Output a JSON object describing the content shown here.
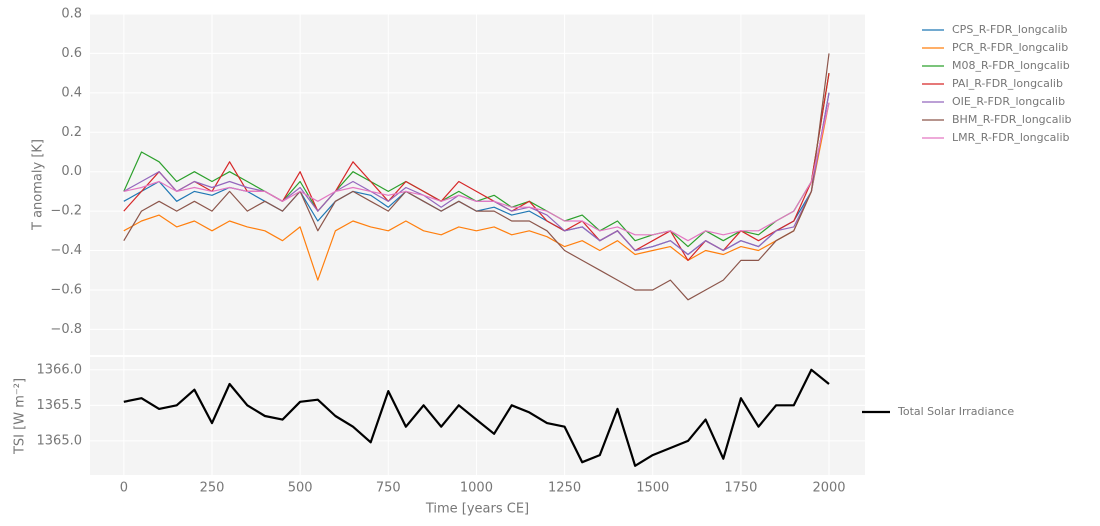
{
  "chart_data": [
    {
      "type": "line",
      "ylabel": "T anomaly [K]",
      "x": [
        0,
        50,
        100,
        150,
        200,
        250,
        300,
        350,
        400,
        450,
        500,
        550,
        600,
        650,
        700,
        750,
        800,
        850,
        900,
        950,
        1000,
        1050,
        1100,
        1150,
        1200,
        1250,
        1300,
        1350,
        1400,
        1450,
        1500,
        1550,
        1600,
        1650,
        1700,
        1750,
        1800,
        1850,
        1900,
        1950,
        2000
      ],
      "xlim": [
        -96,
        2102
      ],
      "ylim": [
        -0.93,
        0.8
      ],
      "yticks": [
        {
          "value": -0.8,
          "label": "−0.8"
        },
        {
          "value": -0.6,
          "label": "−0.6"
        },
        {
          "value": -0.4,
          "label": "−0.4"
        },
        {
          "value": -0.2,
          "label": "−0.2"
        },
        {
          "value": 0,
          "label": "0.0"
        },
        0.2,
        0.4,
        0.6,
        0.8
      ],
      "grid": true,
      "legend": "outside upper right",
      "series": [
        {
          "name": "CPS_R-FDR_longcalib",
          "color": "#1f77b4",
          "values": [
            -0.15,
            -0.1,
            -0.05,
            -0.15,
            -0.1,
            -0.12,
            -0.08,
            -0.1,
            -0.15,
            -0.2,
            -0.1,
            -0.25,
            -0.15,
            -0.1,
            -0.12,
            -0.18,
            -0.1,
            -0.15,
            -0.2,
            -0.15,
            -0.2,
            -0.18,
            -0.22,
            -0.2,
            -0.25,
            -0.3,
            -0.28,
            -0.35,
            -0.3,
            -0.4,
            -0.38,
            -0.35,
            -0.42,
            -0.35,
            -0.4,
            -0.35,
            -0.38,
            -0.3,
            -0.25,
            -0.1,
            0.4
          ]
        },
        {
          "name": "PCR_R-FDR_longcalib",
          "color": "#ff7f0e",
          "values": [
            -0.3,
            -0.25,
            -0.22,
            -0.28,
            -0.25,
            -0.3,
            -0.25,
            -0.28,
            -0.3,
            -0.35,
            -0.28,
            -0.55,
            -0.3,
            -0.25,
            -0.28,
            -0.3,
            -0.25,
            -0.3,
            -0.32,
            -0.28,
            -0.3,
            -0.28,
            -0.32,
            -0.3,
            -0.33,
            -0.38,
            -0.35,
            -0.4,
            -0.35,
            -0.42,
            -0.4,
            -0.38,
            -0.45,
            -0.4,
            -0.42,
            -0.38,
            -0.4,
            -0.35,
            -0.3,
            -0.1,
            0.35
          ]
        },
        {
          "name": "M08_R-FDR_longcalib",
          "color": "#2ca02c",
          "values": [
            -0.1,
            0.1,
            0.05,
            -0.05,
            0.0,
            -0.05,
            0.0,
            -0.05,
            -0.1,
            -0.15,
            -0.05,
            -0.2,
            -0.1,
            0.0,
            -0.05,
            -0.1,
            -0.05,
            -0.1,
            -0.15,
            -0.1,
            -0.15,
            -0.12,
            -0.18,
            -0.15,
            -0.2,
            -0.25,
            -0.22,
            -0.3,
            -0.25,
            -0.35,
            -0.32,
            -0.3,
            -0.38,
            -0.3,
            -0.35,
            -0.3,
            -0.32,
            -0.25,
            -0.2,
            -0.05,
            0.5
          ]
        },
        {
          "name": "PAI_R-FDR_longcalib",
          "color": "#d62728",
          "values": [
            -0.2,
            -0.1,
            0.0,
            -0.1,
            -0.05,
            -0.1,
            0.05,
            -0.1,
            -0.1,
            -0.15,
            0.0,
            -0.2,
            -0.1,
            0.05,
            -0.05,
            -0.15,
            -0.05,
            -0.1,
            -0.15,
            -0.05,
            -0.1,
            -0.15,
            -0.2,
            -0.15,
            -0.25,
            -0.3,
            -0.25,
            -0.35,
            -0.3,
            -0.4,
            -0.35,
            -0.3,
            -0.45,
            -0.35,
            -0.4,
            -0.3,
            -0.35,
            -0.3,
            -0.25,
            -0.05,
            0.5
          ]
        },
        {
          "name": "OIE_R-FDR_longcalib",
          "color": "#9467bd",
          "values": [
            -0.1,
            -0.05,
            0.0,
            -0.1,
            -0.05,
            -0.08,
            -0.05,
            -0.08,
            -0.1,
            -0.15,
            -0.08,
            -0.2,
            -0.1,
            -0.05,
            -0.1,
            -0.15,
            -0.08,
            -0.12,
            -0.18,
            -0.12,
            -0.15,
            -0.15,
            -0.2,
            -0.18,
            -0.22,
            -0.3,
            -0.28,
            -0.35,
            -0.3,
            -0.4,
            -0.38,
            -0.35,
            -0.42,
            -0.35,
            -0.4,
            -0.35,
            -0.38,
            -0.3,
            -0.28,
            -0.1,
            0.4
          ]
        },
        {
          "name": "BHM_R-FDR_longcalib",
          "color": "#8c564b",
          "values": [
            -0.35,
            -0.2,
            -0.15,
            -0.2,
            -0.15,
            -0.2,
            -0.1,
            -0.2,
            -0.15,
            -0.2,
            -0.1,
            -0.3,
            -0.15,
            -0.1,
            -0.15,
            -0.2,
            -0.1,
            -0.15,
            -0.2,
            -0.15,
            -0.2,
            -0.2,
            -0.25,
            -0.25,
            -0.3,
            -0.4,
            -0.45,
            -0.5,
            -0.55,
            -0.6,
            -0.6,
            -0.55,
            -0.65,
            -0.6,
            -0.55,
            -0.45,
            -0.45,
            -0.35,
            -0.3,
            -0.1,
            0.6
          ]
        },
        {
          "name": "LMR_R-FDR_longcalib",
          "color": "#e377c2",
          "values": [
            -0.1,
            -0.08,
            -0.05,
            -0.1,
            -0.08,
            -0.1,
            -0.08,
            -0.1,
            -0.1,
            -0.15,
            -0.1,
            -0.15,
            -0.1,
            -0.08,
            -0.1,
            -0.12,
            -0.1,
            -0.12,
            -0.15,
            -0.12,
            -0.15,
            -0.15,
            -0.18,
            -0.18,
            -0.2,
            -0.25,
            -0.25,
            -0.3,
            -0.28,
            -0.32,
            -0.32,
            -0.3,
            -0.35,
            -0.3,
            -0.32,
            -0.3,
            -0.3,
            -0.25,
            -0.2,
            -0.05,
            0.35
          ]
        }
      ]
    },
    {
      "type": "line",
      "ylabel": "TSI [W m⁻²]",
      "xlabel": "Time [years CE]",
      "x": [
        0,
        50,
        100,
        150,
        200,
        250,
        300,
        350,
        400,
        450,
        500,
        550,
        600,
        650,
        700,
        750,
        800,
        850,
        900,
        950,
        1000,
        1050,
        1100,
        1150,
        1200,
        1250,
        1300,
        1350,
        1400,
        1450,
        1500,
        1550,
        1600,
        1650,
        1700,
        1750,
        1800,
        1850,
        1900,
        1950,
        2000
      ],
      "xlim": [
        -96,
        2102
      ],
      "ylim": [
        1364.52,
        1366.18
      ],
      "xticks": [
        0,
        250,
        500,
        750,
        1000,
        1250,
        1500,
        1750,
        2000
      ],
      "yticks": [
        {
          "value": 1365,
          "label": "1365.0"
        },
        {
          "value": 1365.5,
          "label": "1365.5"
        },
        {
          "value": 1366,
          "label": "1366.0"
        }
      ],
      "grid": true,
      "legend": "outside center right",
      "series": [
        {
          "name": "Total Solar Irradiance",
          "color": "#000000",
          "values": [
            1365.55,
            1365.6,
            1365.45,
            1365.5,
            1365.72,
            1365.25,
            1365.8,
            1365.5,
            1365.35,
            1365.3,
            1365.55,
            1365.58,
            1365.35,
            1365.2,
            1364.98,
            1365.7,
            1365.2,
            1365.5,
            1365.2,
            1365.5,
            1365.3,
            1365.1,
            1365.5,
            1365.4,
            1365.25,
            1365.2,
            1364.7,
            1364.8,
            1365.45,
            1364.65,
            1364.8,
            1364.9,
            1365.0,
            1365.3,
            1364.75,
            1365.6,
            1365.2,
            1365.5,
            1365.5,
            1366.0,
            1365.8
          ]
        }
      ]
    }
  ]
}
